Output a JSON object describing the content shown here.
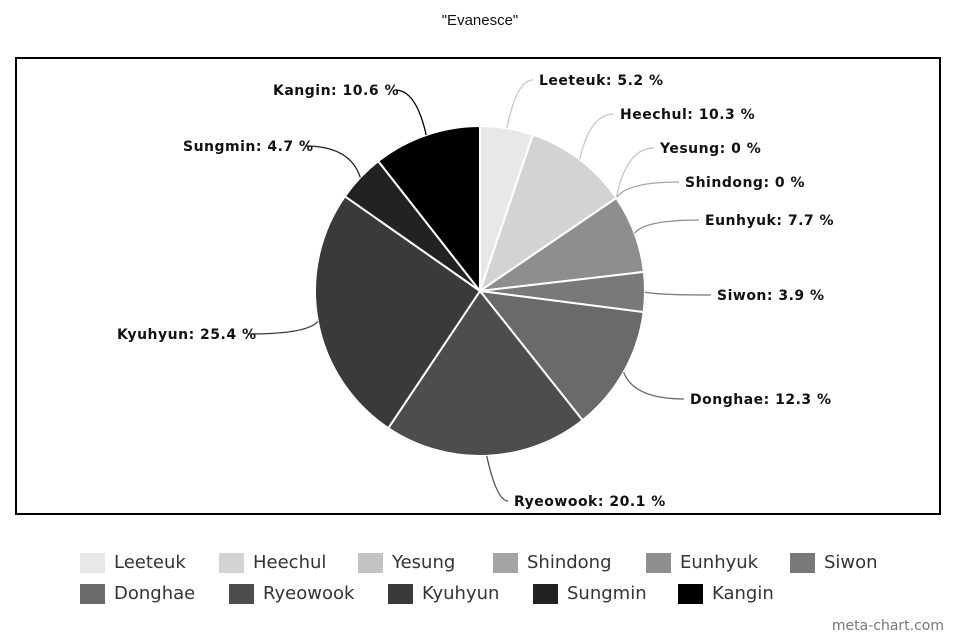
{
  "chart_data": {
    "type": "pie",
    "title": "\"Evanesce\"",
    "slices": [
      {
        "label": "Leeteuk",
        "value": 5.2,
        "data_label": "Leeteuk: 5.2 %",
        "color": "#e8e8e8"
      },
      {
        "label": "Heechul",
        "value": 10.3,
        "data_label": "Heechul: 10.3 %",
        "color": "#d3d3d3"
      },
      {
        "label": "Yesung",
        "value": 0,
        "data_label": "Yesung: 0 %",
        "color": "#c3c3c3"
      },
      {
        "label": "Shindong",
        "value": 0,
        "data_label": "Shindong: 0 %",
        "color": "#a4a4a4"
      },
      {
        "label": "Eunhyuk",
        "value": 7.7,
        "data_label": "Eunhyuk: 7.7 %",
        "color": "#8e8e8e"
      },
      {
        "label": "Siwon",
        "value": 3.9,
        "data_label": "Siwon: 3.9 %",
        "color": "#797979"
      },
      {
        "label": "Donghae",
        "value": 12.3,
        "data_label": "Donghae: 12.3 %",
        "color": "#6a6a6a"
      },
      {
        "label": "Ryeowook",
        "value": 20.1,
        "data_label": "Ryeowook: 20.1 %",
        "color": "#4d4d4d"
      },
      {
        "label": "Kyuhyun",
        "value": 25.4,
        "data_label": "Kyuhyun: 25.4 %",
        "color": "#3a3a3a"
      },
      {
        "label": "Sungmin",
        "value": 4.7,
        "data_label": "Sungmin: 4.7 %",
        "color": "#222222"
      },
      {
        "label": "Kangin",
        "value": 10.6,
        "data_label": "Kangin: 10.6 %",
        "color": "#000000"
      }
    ],
    "legend_placement": "bottom"
  },
  "watermark": "meta-chart.com"
}
